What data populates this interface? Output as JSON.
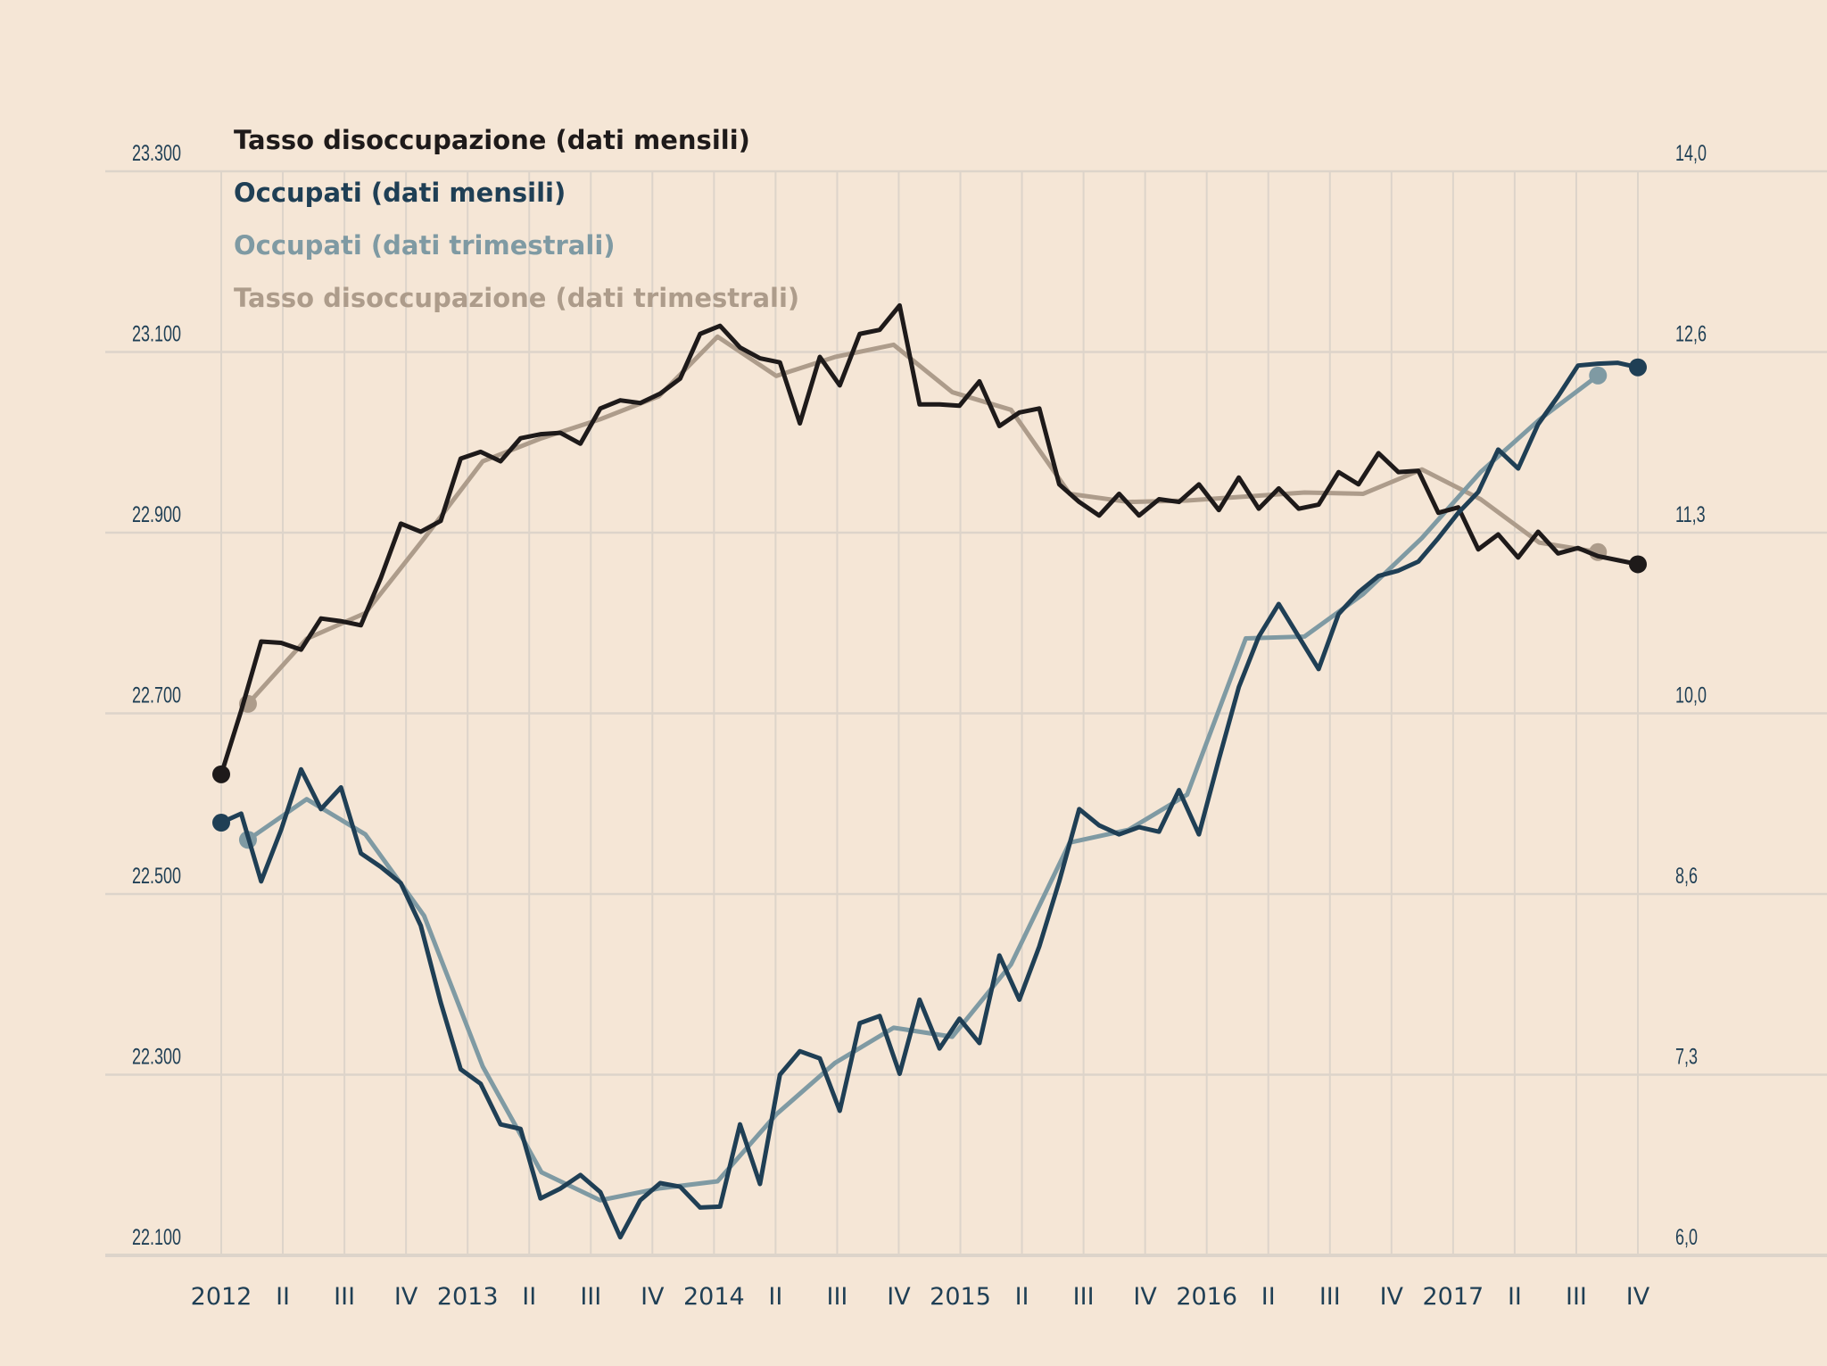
{
  "chart_data": {
    "type": "line",
    "legend": [
      {
        "label": "Tasso disoccupazione (dati mensili)",
        "color": "#1e1a1a"
      },
      {
        "label": "Occupati (dati mensili)",
        "color": "#1f3f55"
      },
      {
        "label": "Occupati (dati trimestrali)",
        "color": "#7f9aa3"
      },
      {
        "label": "Tasso disoccupazione (dati trimestrali)",
        "color": "#ad9c8b"
      }
    ],
    "legend_placement": "top-left",
    "grid": true,
    "x_ticks": [
      "2012",
      "II",
      "III",
      "IV",
      "2013",
      "II",
      "III",
      "IV",
      "2014",
      "II",
      "III",
      "IV",
      "2015",
      "II",
      "III",
      "IV",
      "2016",
      "II",
      "III",
      "IV",
      "2017",
      "II",
      "III",
      "IV"
    ],
    "x_range": [
      "2012-01",
      "2017-12"
    ],
    "y_left": {
      "range": [
        22100,
        23300
      ],
      "ticks": [
        23300,
        23100,
        22900,
        22700,
        22500,
        22300,
        22100
      ],
      "tick_labels": [
        "23.300",
        "23.100",
        "22.900",
        "22.700",
        "22.500",
        "22.300",
        "22.100"
      ]
    },
    "y_right": {
      "range": [
        6,
        14
      ],
      "tick_labels": [
        "14,0",
        "12,6",
        "11,3",
        "10,0",
        "8,6",
        "7,3",
        "6,0"
      ]
    },
    "series": [
      {
        "name": "Tasso disoccupazione (dati mensili)",
        "axis": "right",
        "frequency": "monthly",
        "color": "#1e1a1a",
        "values": [
          9.55,
          10.02,
          10.53,
          10.52,
          10.47,
          10.7,
          10.68,
          10.65,
          11.0,
          11.4,
          11.34,
          11.42,
          11.88,
          11.93,
          11.86,
          12.03,
          12.06,
          12.07,
          11.99,
          12.25,
          12.31,
          12.29,
          12.36,
          12.47,
          12.8,
          12.86,
          12.7,
          12.62,
          12.59,
          12.14,
          12.63,
          12.42,
          12.8,
          12.83,
          13.01,
          12.28,
          12.28,
          12.27,
          12.45,
          12.12,
          12.22,
          12.25,
          11.69,
          11.56,
          11.46,
          11.62,
          11.46,
          11.58,
          11.56,
          11.69,
          11.5,
          11.74,
          11.51,
          11.66,
          11.51,
          11.54,
          11.78,
          11.69,
          11.92,
          11.78,
          11.79,
          11.48,
          11.52,
          11.21,
          11.32,
          11.15,
          11.34,
          11.18,
          11.22,
          11.16,
          11.13,
          11.1
        ]
      },
      {
        "name": "Occupati (dati mensili)",
        "axis": "left",
        "frequency": "monthly",
        "color": "#1f3f55",
        "values": [
          22579,
          22589,
          22514,
          22571,
          22638,
          22594,
          22618,
          22545,
          22530,
          22512,
          22465,
          22380,
          22306,
          22290,
          22245,
          22240,
          22163,
          22174,
          22189,
          22170,
          22120,
          22161,
          22180,
          22176,
          22153,
          22154,
          22245,
          22179,
          22300,
          22326,
          22318,
          22260,
          22357,
          22365,
          22301,
          22383,
          22329,
          22362,
          22335,
          22432,
          22383,
          22442,
          22514,
          22594,
          22576,
          22566,
          22574,
          22569,
          22615,
          22566,
          22649,
          22729,
          22785,
          22821,
          22785,
          22749,
          22810,
          22834,
          22852,
          22858,
          22868,
          22894,
          22922,
          22945,
          22992,
          22971,
          23020,
          23051,
          23085,
          23087,
          23088,
          23083
        ]
      },
      {
        "name": "Occupati (dati trimestrali)",
        "axis": "left",
        "frequency": "quarterly",
        "color": "#7f9aa3",
        "values": [
          22560,
          22605,
          22566,
          22476,
          22309,
          22192,
          22161,
          22174,
          22182,
          22256,
          22313,
          22352,
          22342,
          22422,
          22557,
          22571,
          22610,
          22783,
          22785,
          22832,
          22894,
          22967,
          23025,
          23074
        ]
      },
      {
        "name": "Tasso disoccupazione (dati trimestrali)",
        "axis": "right",
        "frequency": "quarterly",
        "color": "#ad9c8b",
        "values": [
          10.07,
          10.55,
          10.74,
          11.29,
          11.86,
          12.03,
          12.17,
          12.34,
          12.78,
          12.49,
          12.63,
          12.72,
          12.37,
          12.24,
          11.62,
          11.56,
          11.57,
          11.6,
          11.63,
          11.62,
          11.8,
          11.58,
          11.26,
          11.19
        ]
      }
    ]
  },
  "colors": {
    "background": "#f5e6d6",
    "grid": "#ddd4ca",
    "axis_text": "#1f3f55"
  }
}
